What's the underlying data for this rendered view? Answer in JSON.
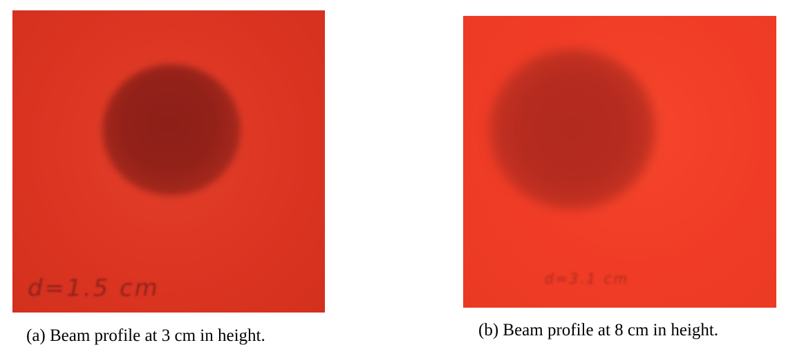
{
  "figures": [
    {
      "caption": "(a) Beam profile at 3 cm in height.",
      "handwriting": "d=1.5 cm"
    },
    {
      "caption": "(b) Beam profile at 8 cm in height.",
      "handwriting": "d=3.1 cm"
    }
  ],
  "colors": {
    "board_a": "#dc3522",
    "spot_a": "#8c1f18",
    "board_b": "#f03c26",
    "spot_b": "#b2291e"
  }
}
